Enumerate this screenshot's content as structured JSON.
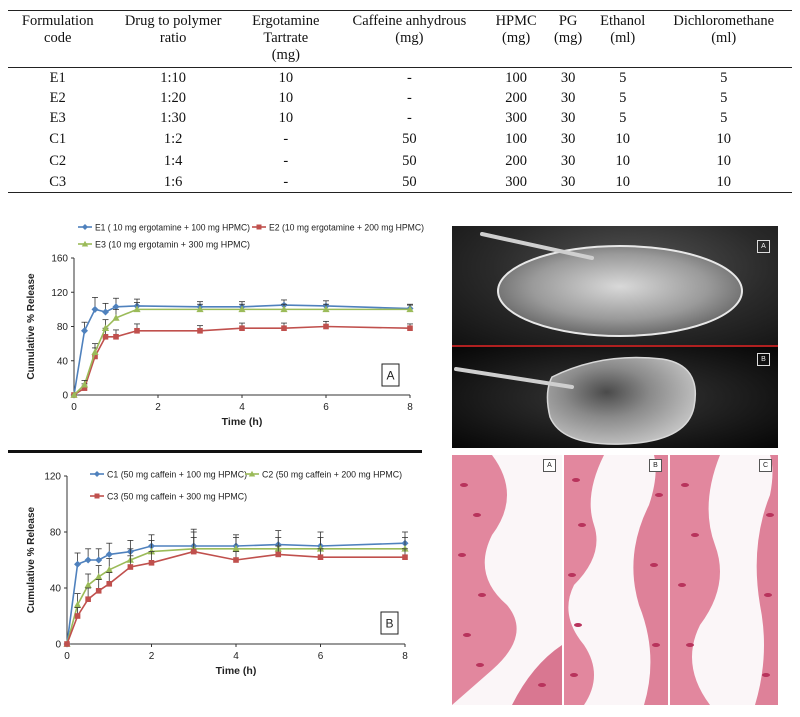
{
  "table": {
    "headers": [
      [
        "Formulation",
        "code"
      ],
      [
        "Drug to polymer",
        "ratio"
      ],
      [
        "Ergotamine",
        "Tartrate",
        "(mg)"
      ],
      [
        "Caffeine anhydrous",
        "(mg)"
      ],
      [
        "HPMC",
        "(mg)"
      ],
      [
        "PG",
        "(mg)"
      ],
      [
        "Ethanol",
        "(ml)"
      ],
      [
        "Dichloromethane",
        "(ml)"
      ]
    ],
    "rows": [
      [
        "E1",
        "1:10",
        "10",
        "-",
        "100",
        "30",
        "5",
        "5"
      ],
      [
        "E2",
        "1:20",
        "10",
        "-",
        "200",
        "30",
        "5",
        "5"
      ],
      [
        "E3",
        "1:30",
        "10",
        "-",
        "300",
        "30",
        "5",
        "5"
      ],
      [
        "C1",
        "1:2",
        "-",
        "50",
        "100",
        "30",
        "10",
        "10"
      ],
      [
        "C2",
        "1:4",
        "-",
        "50",
        "200",
        "30",
        "10",
        "10"
      ],
      [
        "C3",
        "1:6",
        "-",
        "50",
        "300",
        "30",
        "10",
        "10"
      ]
    ]
  },
  "chart_data": [
    {
      "type": "line",
      "panel_label": "A",
      "xlabel": "Time (h)",
      "ylabel": "Cumulative % Release",
      "xlim": [
        0,
        8
      ],
      "ylim": [
        0,
        160
      ],
      "xticks": [
        "0",
        "2",
        "4",
        "6",
        "8"
      ],
      "yticks": [
        "0",
        "40",
        "80",
        "120",
        "160"
      ],
      "legend_position": "top-left",
      "series": [
        {
          "name": "E1 ( 10 mg ergotamine + 100 mg HPMC)",
          "color": "#4f81bd",
          "marker": "diamond",
          "x": [
            0,
            0.25,
            0.5,
            0.75,
            1,
            1.5,
            3,
            4,
            5,
            6,
            8
          ],
          "y": [
            0,
            75,
            100,
            97,
            103,
            104,
            103,
            103,
            105,
            104,
            101
          ],
          "err": [
            0,
            10,
            14,
            10,
            10,
            8,
            6,
            6,
            6,
            6,
            5
          ]
        },
        {
          "name": "E2 (10 mg ergotamine + 200 mg HPMC)",
          "color": "#c0504d",
          "marker": "square",
          "x": [
            0,
            0.25,
            0.5,
            0.75,
            1,
            1.5,
            3,
            4,
            5,
            6,
            8
          ],
          "y": [
            0,
            8,
            45,
            68,
            68,
            75,
            75,
            78,
            78,
            80,
            78
          ],
          "err": [
            0,
            5,
            10,
            10,
            8,
            8,
            6,
            6,
            6,
            6,
            5
          ]
        },
        {
          "name": "E3 (10 mg ergotamin + 300 mg HPMC)",
          "color": "#9bbb59",
          "marker": "triangle",
          "x": [
            0,
            0.25,
            0.5,
            0.75,
            1,
            1.5,
            3,
            4,
            5,
            6,
            8
          ],
          "y": [
            0,
            12,
            50,
            78,
            90,
            100,
            100,
            100,
            100,
            100,
            100
          ],
          "err": [
            0,
            5,
            10,
            10,
            10,
            8,
            6,
            6,
            6,
            6,
            5
          ]
        }
      ]
    },
    {
      "type": "line",
      "panel_label": "B",
      "xlabel": "Time (h)",
      "ylabel": "Cumulative % Release",
      "xlim": [
        0,
        8
      ],
      "ylim": [
        0,
        120
      ],
      "xticks": [
        "0",
        "2",
        "4",
        "6",
        "8"
      ],
      "yticks": [
        "0",
        "40",
        "80",
        "120"
      ],
      "legend_position": "top-left",
      "series": [
        {
          "name": "C1 (50 mg caffein + 100 mg HPMC)",
          "color": "#4f81bd",
          "marker": "diamond",
          "x": [
            0,
            0.25,
            0.5,
            0.75,
            1,
            1.5,
            2,
            3,
            4,
            5,
            6,
            8
          ],
          "y": [
            0,
            57,
            60,
            60,
            64,
            66,
            70,
            70,
            70,
            71,
            70,
            72
          ],
          "err": [
            0,
            8,
            8,
            8,
            8,
            8,
            8,
            12,
            8,
            10,
            10,
            8
          ]
        },
        {
          "name": "C2 (50 mg caffein + 200 mg HPMC)",
          "color": "#9bbb59",
          "marker": "triangle",
          "x": [
            0,
            0.25,
            0.5,
            0.75,
            1,
            1.5,
            2,
            3,
            4,
            5,
            6,
            8
          ],
          "y": [
            0,
            28,
            42,
            48,
            53,
            60,
            66,
            68,
            68,
            68,
            68,
            68
          ],
          "err": [
            0,
            8,
            8,
            8,
            8,
            8,
            8,
            12,
            8,
            8,
            8,
            8
          ]
        },
        {
          "name": "C3 (50 mg caffein + 300 mg HPMC)",
          "color": "#c0504d",
          "marker": "square",
          "x": [
            0,
            0.25,
            0.5,
            0.75,
            1,
            1.5,
            2,
            3,
            4,
            5,
            6,
            8
          ],
          "y": [
            0,
            20,
            32,
            38,
            43,
            55,
            58,
            66,
            60,
            64,
            62,
            62
          ],
          "err": [
            0,
            6,
            8,
            8,
            8,
            8,
            8,
            10,
            6,
            6,
            6,
            6
          ]
        }
      ]
    }
  ],
  "film_photos": {
    "labels": [
      "A",
      "B"
    ],
    "colors": {
      "background": "#000000",
      "separator": "#b02020",
      "film": "#c8c8c8"
    }
  },
  "histology": {
    "labels": [
      "A",
      "B",
      "C"
    ],
    "colors": {
      "tissue": "#e2879e",
      "nuclei": "#b8335c",
      "lumen": "#fbf6f8"
    }
  }
}
